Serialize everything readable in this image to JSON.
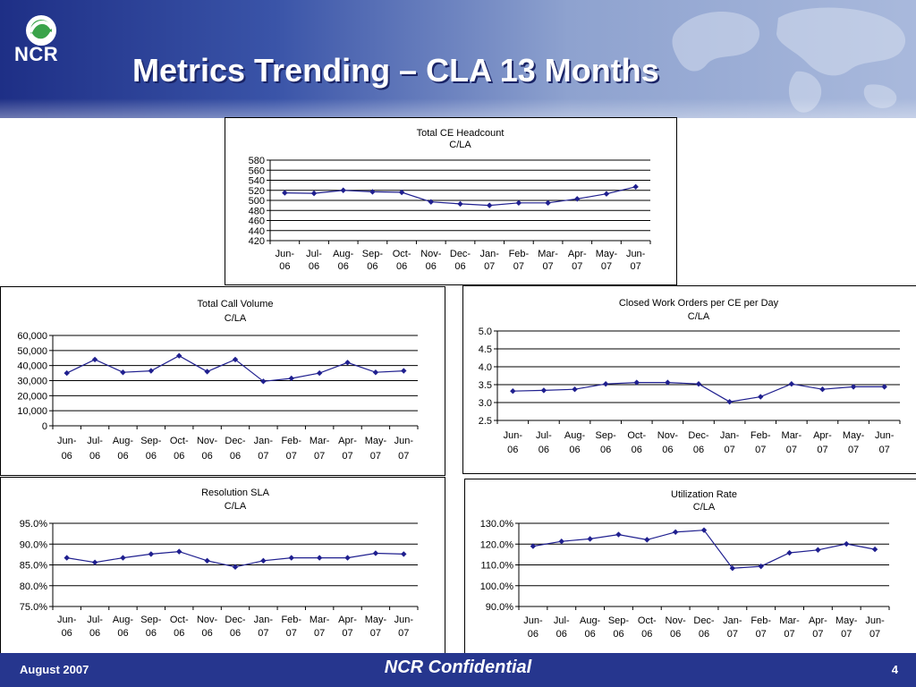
{
  "slide": {
    "title": "Metrics Trending – CLA 13 Months",
    "logo_text": "NCR",
    "footer_date": "August 2007",
    "footer_center": "NCR Confidential",
    "page_number": "4"
  },
  "colors": {
    "header": "#2b3f95",
    "footer": "#26368e",
    "series": "#1f1f8f"
  },
  "chart_data": [
    {
      "type": "line",
      "title": "Total CE Headcount",
      "subtitle": "C/LA",
      "categories": [
        [
          "Jun-",
          "06"
        ],
        [
          "Jul-",
          "06"
        ],
        [
          "Aug-",
          "06"
        ],
        [
          "Sep-",
          "06"
        ],
        [
          "Oct-",
          "06"
        ],
        [
          "Nov-",
          "06"
        ],
        [
          "Dec-",
          "06"
        ],
        [
          "Jan-",
          "07"
        ],
        [
          "Feb-",
          "07"
        ],
        [
          "Mar-",
          "07"
        ],
        [
          "Apr-",
          "07"
        ],
        [
          "May-",
          "07"
        ],
        [
          "Jun-",
          "07"
        ]
      ],
      "values": [
        515,
        514,
        520,
        517,
        516,
        497,
        493,
        490,
        495,
        495,
        503,
        513,
        527
      ],
      "ylim": [
        420,
        580
      ],
      "yticks": [
        "580",
        "560",
        "540",
        "520",
        "500",
        "480",
        "460",
        "440",
        "420"
      ],
      "grid": true,
      "legend": "none"
    },
    {
      "type": "line",
      "title": "Total Call Volume",
      "subtitle": "C/LA",
      "categories": [
        [
          "Jun-",
          "06"
        ],
        [
          "Jul-",
          "06"
        ],
        [
          "Aug-",
          "06"
        ],
        [
          "Sep-",
          "06"
        ],
        [
          "Oct-",
          "06"
        ],
        [
          "Nov-",
          "06"
        ],
        [
          "Dec-",
          "06"
        ],
        [
          "Jan-",
          "07"
        ],
        [
          "Feb-",
          "07"
        ],
        [
          "Mar-",
          "07"
        ],
        [
          "Apr-",
          "07"
        ],
        [
          "May-",
          "07"
        ],
        [
          "Jun-",
          "07"
        ]
      ],
      "values": [
        35000,
        44000,
        35500,
        36500,
        46500,
        36000,
        44000,
        29500,
        31500,
        35000,
        42000,
        35500,
        36500
      ],
      "ylim": [
        0,
        60000
      ],
      "yticks": [
        "60,000",
        "50,000",
        "40,000",
        "30,000",
        "20,000",
        "10,000",
        "0"
      ],
      "grid": true,
      "legend": "none"
    },
    {
      "type": "line",
      "title": "Closed Work Orders per CE per Day",
      "subtitle": "C/LA",
      "categories": [
        [
          "Jun-",
          "06"
        ],
        [
          "Jul-",
          "06"
        ],
        [
          "Aug-",
          "06"
        ],
        [
          "Sep-",
          "06"
        ],
        [
          "Oct-",
          "06"
        ],
        [
          "Nov-",
          "06"
        ],
        [
          "Dec-",
          "06"
        ],
        [
          "Jan-",
          "07"
        ],
        [
          "Feb-",
          "07"
        ],
        [
          "Mar-",
          "07"
        ],
        [
          "Apr-",
          "07"
        ],
        [
          "May-",
          "07"
        ],
        [
          "Jun-",
          "07"
        ]
      ],
      "values": [
        3.32,
        3.34,
        3.37,
        3.52,
        3.56,
        3.56,
        3.52,
        3.02,
        3.16,
        3.52,
        3.37,
        3.44,
        3.44
      ],
      "ylim": [
        2.5,
        5.0
      ],
      "yticks": [
        "5.0",
        "4.5",
        "4.0",
        "3.5",
        "3.0",
        "2.5"
      ],
      "grid": true,
      "legend": "none"
    },
    {
      "type": "line",
      "title": "Resolution SLA",
      "subtitle": "C/LA",
      "categories": [
        [
          "Jun-",
          "06"
        ],
        [
          "Jul-",
          "06"
        ],
        [
          "Aug-",
          "06"
        ],
        [
          "Sep-",
          "06"
        ],
        [
          "Oct-",
          "06"
        ],
        [
          "Nov-",
          "06"
        ],
        [
          "Dec-",
          "06"
        ],
        [
          "Jan-",
          "07"
        ],
        [
          "Feb-",
          "07"
        ],
        [
          "Mar-",
          "07"
        ],
        [
          "Apr-",
          "07"
        ],
        [
          "May-",
          "07"
        ],
        [
          "Jun-",
          "07"
        ]
      ],
      "values": [
        86.7,
        85.6,
        86.7,
        87.6,
        88.2,
        86.0,
        84.5,
        86.0,
        86.7,
        86.7,
        86.7,
        87.8,
        87.6
      ],
      "ylim": [
        75,
        95
      ],
      "yticks": [
        "95.0%",
        "90.0%",
        "85.0%",
        "80.0%",
        "75.0%"
      ],
      "grid": true,
      "legend": "none"
    },
    {
      "type": "line",
      "title": "Utilization Rate",
      "subtitle": "C/LA",
      "categories": [
        [
          "Jun-",
          "06"
        ],
        [
          "Jul-",
          "06"
        ],
        [
          "Aug-",
          "06"
        ],
        [
          "Sep-",
          "06"
        ],
        [
          "Oct-",
          "06"
        ],
        [
          "Nov-",
          "06"
        ],
        [
          "Dec-",
          "06"
        ],
        [
          "Jan-",
          "07"
        ],
        [
          "Feb-",
          "07"
        ],
        [
          "Mar-",
          "07"
        ],
        [
          "Apr-",
          "07"
        ],
        [
          "May-",
          "07"
        ],
        [
          "Jun-",
          "07"
        ]
      ],
      "values": [
        119.0,
        121.3,
        122.5,
        124.6,
        122.1,
        125.8,
        126.7,
        108.4,
        109.3,
        115.8,
        117.2,
        120.1,
        117.5
      ],
      "ylim": [
        90,
        130
      ],
      "yticks": [
        "130.0%",
        "120.0%",
        "110.0%",
        "100.0%",
        "90.0%"
      ],
      "grid": true,
      "legend": "none"
    }
  ]
}
